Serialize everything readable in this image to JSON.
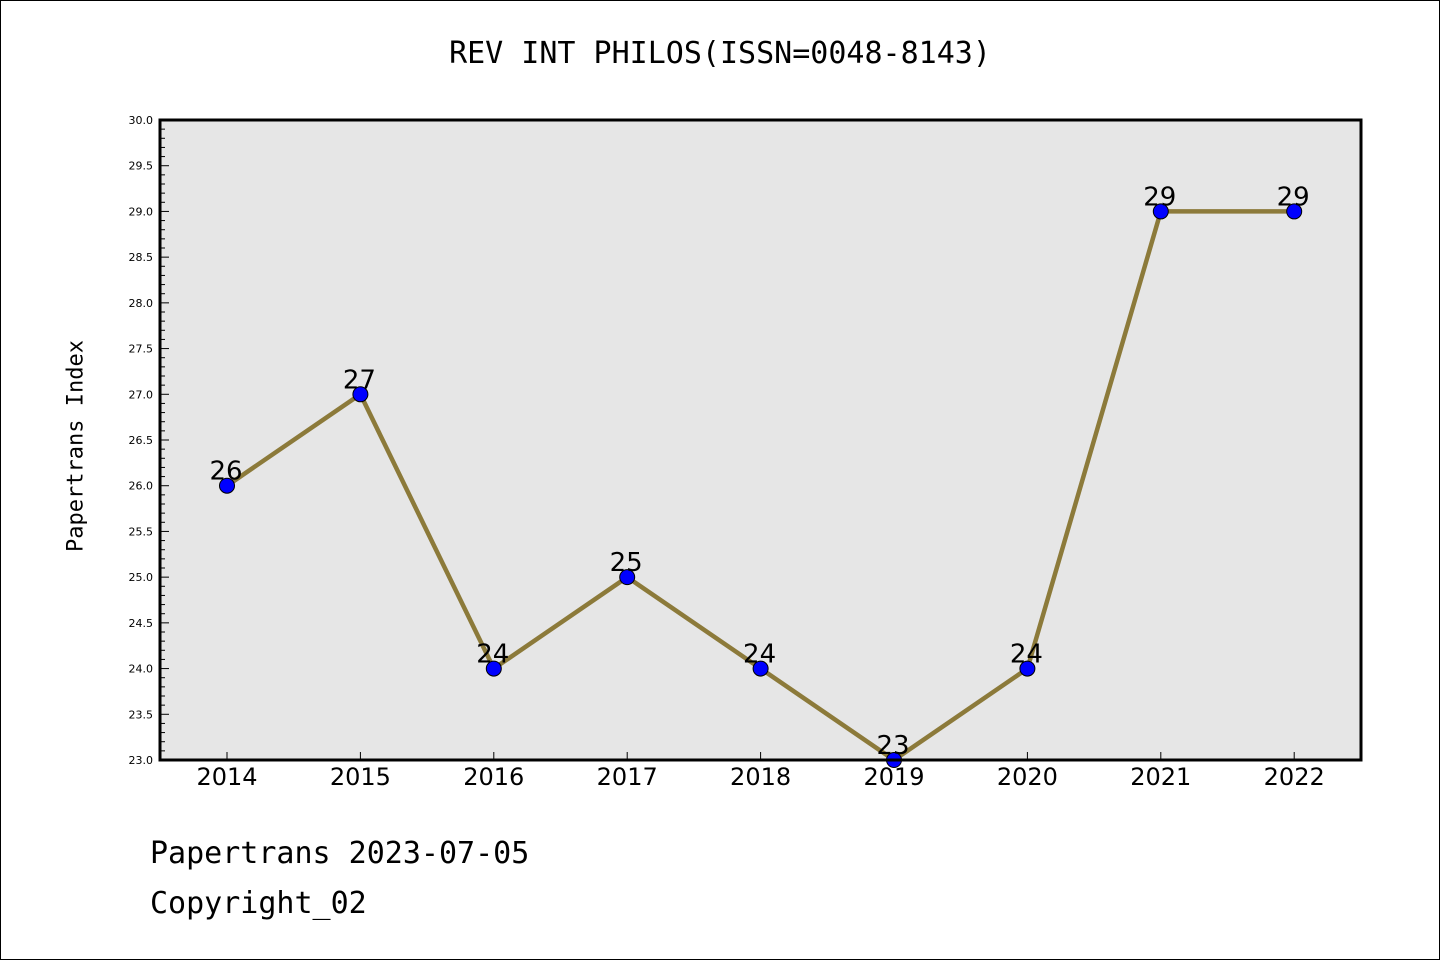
{
  "chart_data": {
    "type": "line",
    "title": "REV INT PHILOS(ISSN=0048-8143)",
    "xlabel": "",
    "ylabel": "Papertrans Index",
    "categories": [
      "2014",
      "2015",
      "2016",
      "2017",
      "2018",
      "2019",
      "2020",
      "2021",
      "2022"
    ],
    "series": [
      {
        "values": [
          26,
          27,
          24,
          25,
          24,
          23,
          24,
          29,
          29
        ]
      }
    ],
    "data_labels": [
      "26",
      "27",
      "24",
      "25",
      "24",
      "23",
      "24",
      "29",
      "29"
    ],
    "ylim": [
      23.0,
      30.0
    ],
    "y_ticks": [
      "23.0",
      "23.5",
      "24.0",
      "24.5",
      "25.0",
      "25.5",
      "26.0",
      "26.5",
      "27.0",
      "27.5",
      "28.0",
      "28.5",
      "29.0",
      "29.5",
      "30.0"
    ],
    "grid": false,
    "legend": "none",
    "colors": {
      "line": "#8c7a3a",
      "marker": "#0000ff",
      "plot_background": "#e6e6e6"
    }
  },
  "footer": {
    "date": "Papertrans 2023-07-05",
    "copyright": "Copyright_02"
  }
}
